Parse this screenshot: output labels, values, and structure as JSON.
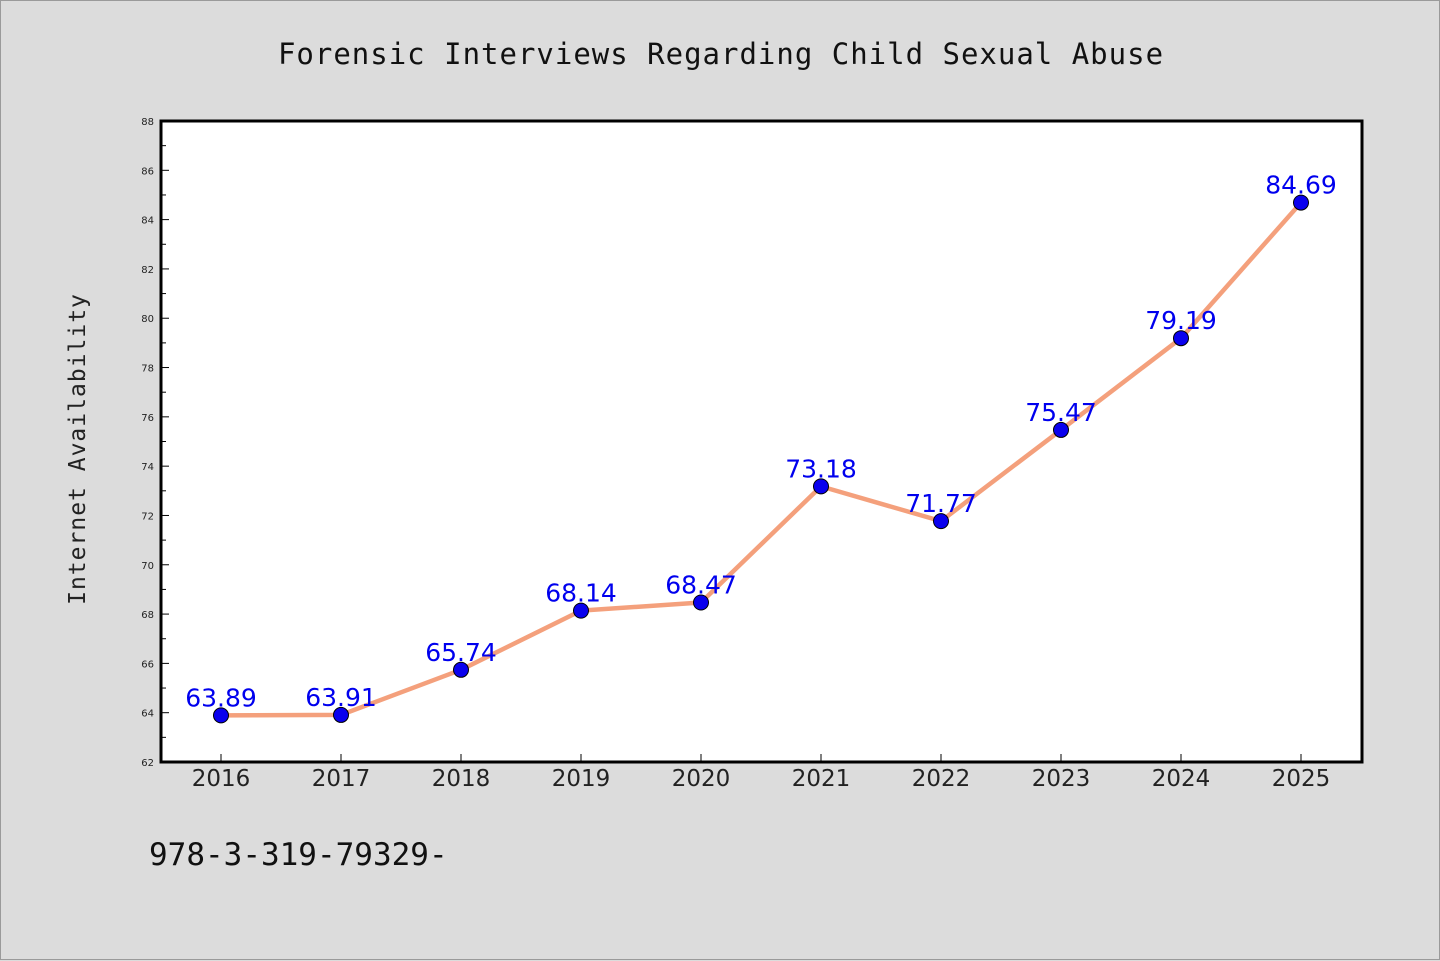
{
  "chart_data": {
    "type": "line",
    "title": "Forensic Interviews Regarding Child Sexual Abuse",
    "xlabel": "",
    "ylabel": "Internet Availability",
    "categories": [
      "2016",
      "2017",
      "2018",
      "2019",
      "2020",
      "2021",
      "2022",
      "2023",
      "2024",
      "2025"
    ],
    "series": [
      {
        "values": [
          63.89,
          63.91,
          65.74,
          68.14,
          68.47,
          73.18,
          71.77,
          75.47,
          79.19,
          84.69
        ],
        "labels": [
          "63.89",
          "63.91",
          "65.74",
          "68.14",
          "68.47",
          "73.18",
          "71.77",
          "75.47",
          "79.19",
          "84.69"
        ],
        "line_color": "#f4a07c",
        "marker_color": "#0a00ee"
      }
    ],
    "ylim": [
      62,
      88
    ],
    "yticks": [
      62,
      64,
      66,
      68,
      70,
      72,
      74,
      76,
      78,
      80,
      82,
      84,
      86,
      88
    ],
    "ytick_labels": [
      "62",
      "64",
      "66",
      "68",
      "70",
      "72",
      "74",
      "76",
      "78",
      "80",
      "82",
      "84",
      "86",
      "88"
    ],
    "grid": false,
    "legend": "none",
    "label_color": "#0000ee",
    "plot_background": "#ffffff",
    "figure_background": "#dcdcdc"
  },
  "footer": {
    "text": "978-3-319-79329-"
  }
}
